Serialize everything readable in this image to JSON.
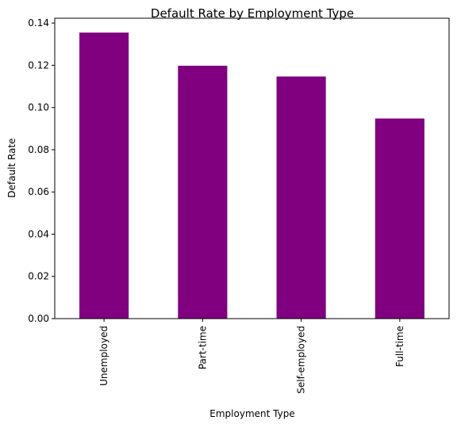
{
  "chart_data": {
    "type": "bar",
    "title": "Default Rate by Employment Type",
    "xlabel": "Employment Type",
    "ylabel": "Default Rate",
    "categories": [
      "Unemployed",
      "Part-time",
      "Self-employed",
      "Full-time"
    ],
    "values": [
      0.1355,
      0.1198,
      0.1147,
      0.0948
    ],
    "ylim": [
      0,
      0.1423
    ],
    "yticks": [
      0.0,
      0.02,
      0.04,
      0.06,
      0.08,
      0.1,
      0.12,
      0.14
    ],
    "ytick_labels": [
      "0.00",
      "0.02",
      "0.04",
      "0.06",
      "0.08",
      "0.10",
      "0.12",
      "0.14"
    ],
    "bar_color": "#800080",
    "grid": false,
    "legend": "none"
  }
}
